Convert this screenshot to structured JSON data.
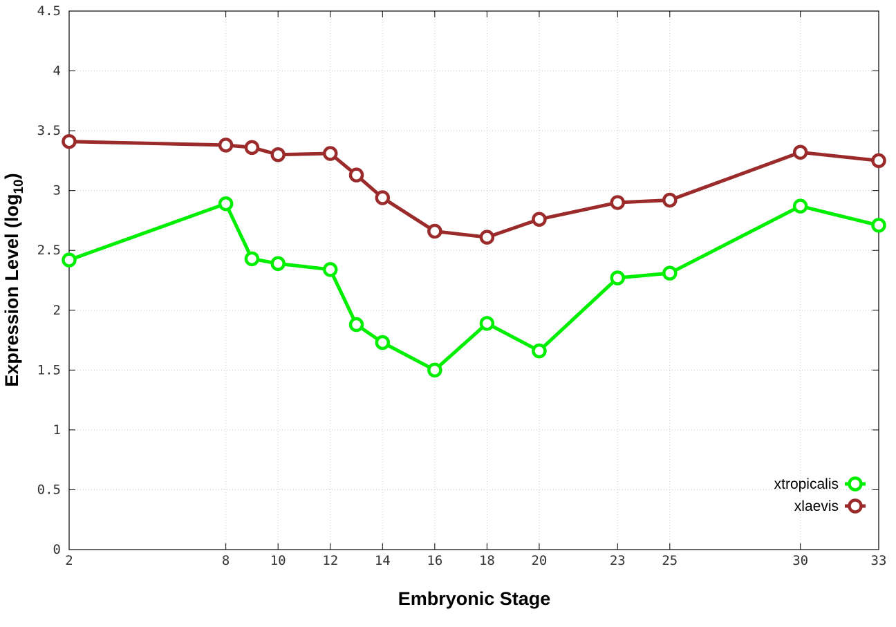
{
  "chart_data": {
    "type": "line",
    "xlabel": "Embryonic Stage",
    "ylabel": {
      "main": "Expression Level (log",
      "sub": "10",
      "close": ")"
    },
    "x_ticks": [
      2,
      8,
      10,
      12,
      14,
      16,
      18,
      20,
      23,
      25,
      30,
      33
    ],
    "y_ticks": [
      0,
      0.5,
      1,
      1.5,
      2,
      2.5,
      3,
      3.5,
      4,
      4.5
    ],
    "y_tick_labels": [
      "0",
      "0.5",
      "1",
      "1.5",
      "2",
      "2.5",
      "3",
      "3.5",
      "4",
      "4.5"
    ],
    "xlim": [
      2,
      33
    ],
    "ylim": [
      0,
      4.5
    ],
    "grid": true,
    "legend_position": "bottom-right",
    "series": [
      {
        "name": "xtropicalis",
        "color": "#00ee00",
        "marker": "circle-open",
        "x": [
          2,
          8,
          9,
          10,
          12,
          13,
          14,
          16,
          18,
          20,
          23,
          25,
          30,
          33
        ],
        "y": [
          2.42,
          2.89,
          2.43,
          2.39,
          2.34,
          1.88,
          1.73,
          1.5,
          1.89,
          1.66,
          2.27,
          2.31,
          2.87,
          2.71
        ]
      },
      {
        "name": "xlaevis",
        "color": "#9b2a2a",
        "marker": "circle-open",
        "x": [
          2,
          8,
          9,
          10,
          12,
          13,
          14,
          16,
          18,
          20,
          23,
          25,
          30,
          33
        ],
        "y": [
          3.41,
          3.38,
          3.36,
          3.3,
          3.31,
          3.13,
          2.94,
          2.66,
          2.61,
          2.76,
          2.9,
          2.92,
          3.32,
          3.25
        ]
      }
    ]
  }
}
